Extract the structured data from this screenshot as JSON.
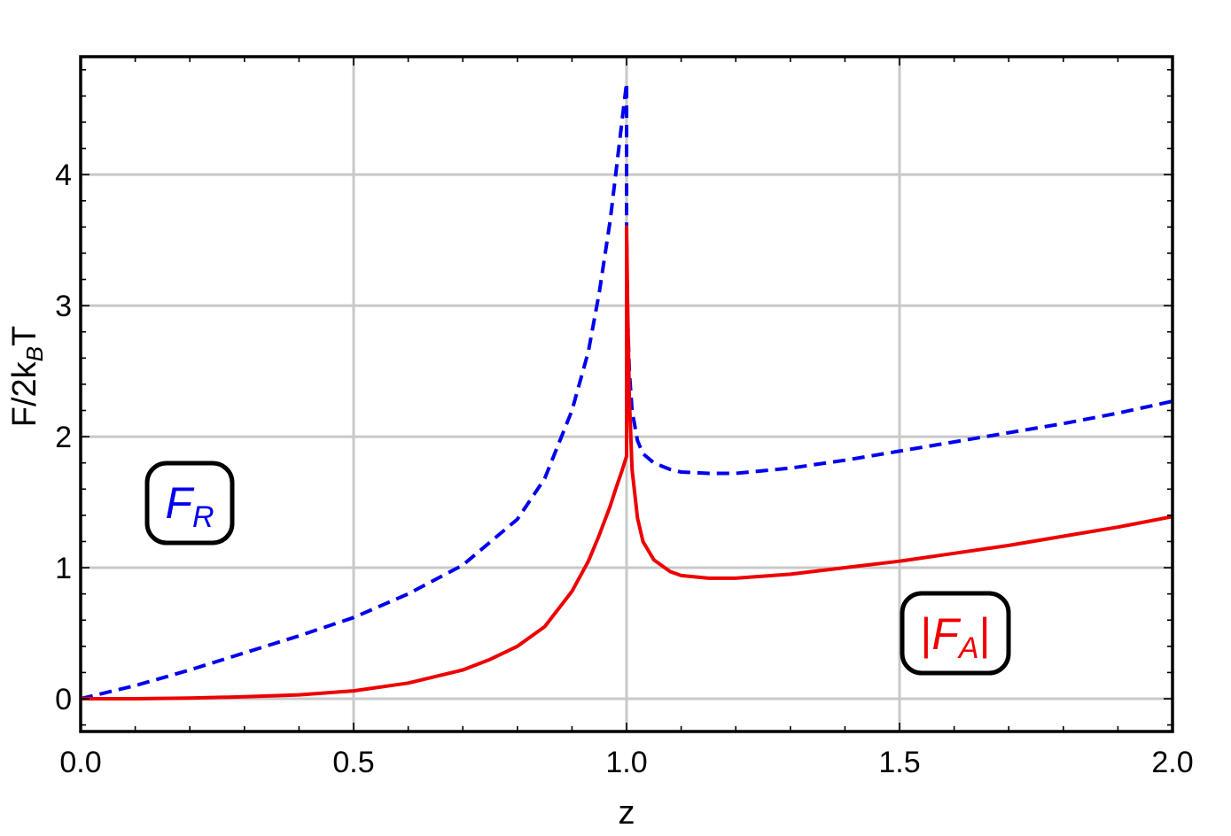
{
  "chart_data": {
    "type": "line",
    "title": "",
    "xlabel": "z",
    "ylabel_main": "F/2k",
    "ylabel_sub": "B",
    "ylabel_tail": "T",
    "xlim": [
      0,
      2
    ],
    "ylim": [
      -0.25,
      4.9
    ],
    "x_ticks": [
      "0.0",
      "0.5",
      "1.0",
      "1.5",
      "2.0"
    ],
    "x_tick_values": [
      0,
      0.5,
      1,
      1.5,
      2
    ],
    "y_ticks": [
      "0",
      "1",
      "2",
      "3",
      "4"
    ],
    "y_tick_values": [
      0,
      1,
      2,
      3,
      4
    ],
    "grid": true,
    "series": [
      {
        "label_main": "F",
        "label_sub": "R",
        "label_prefix": "",
        "label_suffix": "",
        "color": "#0000ee",
        "dash": "dashed",
        "x": [
          0.0,
          0.1,
          0.2,
          0.3,
          0.4,
          0.5,
          0.6,
          0.7,
          0.8,
          0.85,
          0.9,
          0.93,
          0.95,
          0.97,
          0.98,
          0.99,
          1.0,
          1.0,
          1.002,
          1.005,
          1.01,
          1.02,
          1.03,
          1.05,
          1.08,
          1.1,
          1.15,
          1.2,
          1.3,
          1.4,
          1.5,
          1.6,
          1.7,
          1.8,
          1.9,
          2.0
        ],
        "y": [
          0.0,
          0.1,
          0.22,
          0.35,
          0.48,
          0.62,
          0.8,
          1.02,
          1.37,
          1.68,
          2.2,
          2.65,
          3.1,
          3.65,
          4.0,
          4.35,
          4.7,
          3.55,
          2.9,
          2.5,
          2.2,
          1.97,
          1.87,
          1.8,
          1.75,
          1.73,
          1.72,
          1.72,
          1.76,
          1.82,
          1.89,
          1.96,
          2.03,
          2.1,
          2.18,
          2.27
        ]
      },
      {
        "label_main": "F",
        "label_sub": "A",
        "label_prefix": "|",
        "label_suffix": "|",
        "color": "#ee0000",
        "dash": "solid",
        "x": [
          0.0,
          0.1,
          0.2,
          0.3,
          0.4,
          0.5,
          0.6,
          0.7,
          0.75,
          0.8,
          0.85,
          0.9,
          0.93,
          0.95,
          0.97,
          0.98,
          0.99,
          1.0,
          1.0,
          1.002,
          1.005,
          1.01,
          1.02,
          1.03,
          1.05,
          1.08,
          1.1,
          1.15,
          1.2,
          1.3,
          1.4,
          1.5,
          1.6,
          1.7,
          1.8,
          1.9,
          2.0
        ],
        "y": [
          0.0,
          0.0,
          0.005,
          0.015,
          0.03,
          0.06,
          0.12,
          0.22,
          0.3,
          0.4,
          0.55,
          0.82,
          1.05,
          1.25,
          1.47,
          1.6,
          1.72,
          1.85,
          3.6,
          3.0,
          2.3,
          1.75,
          1.38,
          1.2,
          1.06,
          0.97,
          0.94,
          0.92,
          0.92,
          0.95,
          1.0,
          1.05,
          1.11,
          1.17,
          1.24,
          1.31,
          1.39
        ]
      }
    ]
  }
}
